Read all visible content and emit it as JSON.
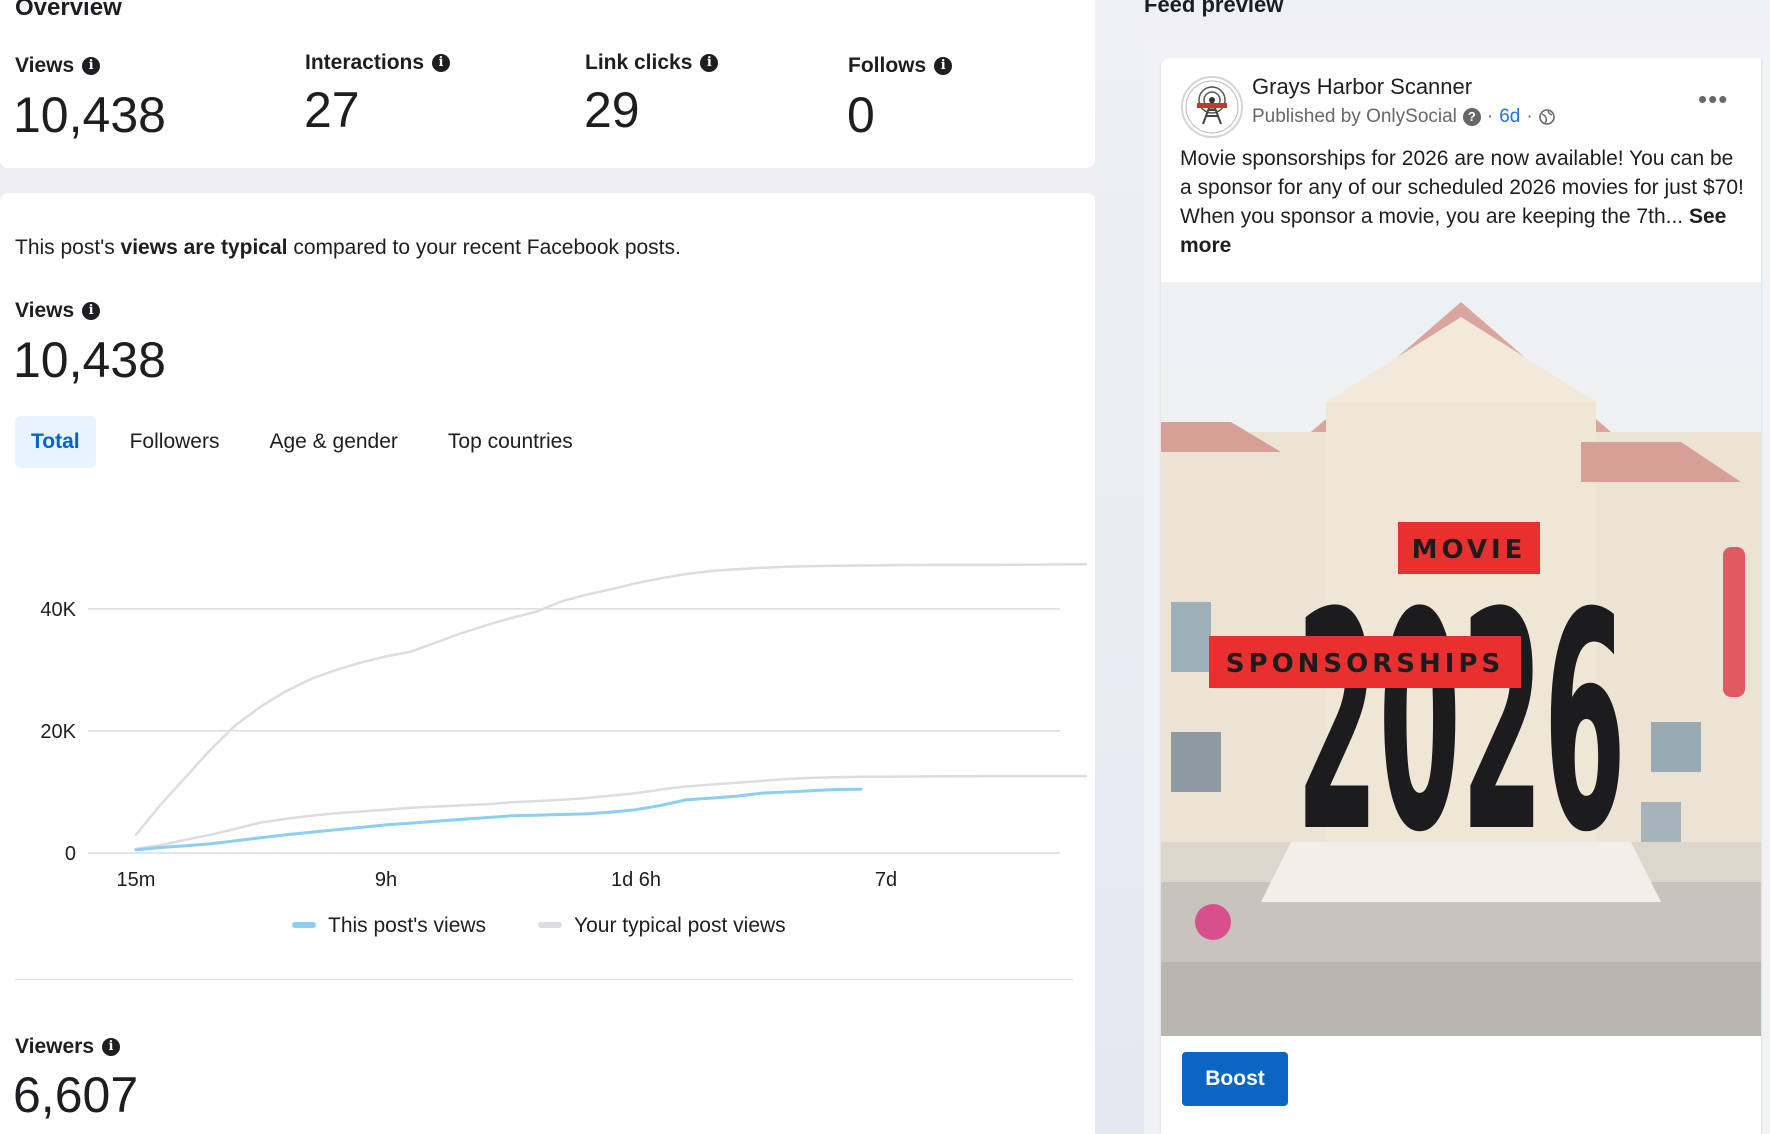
{
  "overview": {
    "title": "Overview",
    "metrics": [
      {
        "label": "Views",
        "value": "10,438"
      },
      {
        "label": "Interactions",
        "value": "27"
      },
      {
        "label": "Link clicks",
        "value": "29"
      },
      {
        "label": "Follows",
        "value": "0"
      }
    ]
  },
  "views_section": {
    "desc_prefix": "This post's ",
    "desc_bold": "views are typical",
    "desc_suffix": " compared to your recent Facebook posts.",
    "views_label": "Views",
    "views_value": "10,438",
    "tabs": [
      "Total",
      "Followers",
      "Age & gender",
      "Top countries"
    ],
    "active_tab": "Total",
    "viewers_label": "Viewers",
    "viewers_value": "6,607"
  },
  "chart_data": {
    "type": "line",
    "x_ticks": [
      "15m",
      "9h",
      "1d 6h",
      "7d"
    ],
    "y_ticks": [
      "0",
      "20K",
      "40K"
    ],
    "ylim": [
      0,
      48000
    ],
    "grid": true,
    "legend_position": "bottom",
    "x_index": [
      0,
      0.1,
      0.2,
      0.3,
      0.4,
      0.5,
      0.6,
      0.7,
      0.8,
      0.9,
      1.0,
      1.1,
      1.2,
      1.3,
      1.4,
      1.5,
      1.6,
      1.7,
      1.8,
      1.9,
      2.0,
      2.1,
      2.2,
      2.3,
      2.4,
      2.5,
      2.6,
      2.7,
      2.8,
      2.9,
      3.0,
      3.2,
      3.4,
      3.6,
      3.8
    ],
    "series": [
      {
        "name": "This post's views",
        "color": "#8ccff0",
        "values": [
          500,
          900,
          1200,
          1500,
          2000,
          2500,
          3000,
          3400,
          3800,
          4200,
          4600,
          4900,
          5200,
          5500,
          5800,
          6100,
          6200,
          6300,
          6400,
          6700,
          7100,
          7800,
          8700,
          9000,
          9300,
          9800,
          10000,
          10200,
          10400,
          10438
        ]
      },
      {
        "name": "Your typical post views",
        "color": "#dadde1",
        "values": [
          700,
          1300,
          2200,
          3000,
          4000,
          5000,
          5600,
          6100,
          6500,
          6800,
          7100,
          7400,
          7600,
          7800,
          8000,
          8300,
          8500,
          8700,
          9000,
          9400,
          9800,
          10400,
          10900,
          11200,
          11500,
          11800,
          12100,
          12300,
          12400,
          12500,
          12500,
          12550,
          12600,
          12600,
          12600
        ]
      },
      {
        "name": "",
        "color": "#dadde1",
        "values": [
          3000,
          8000,
          12500,
          17000,
          21000,
          24000,
          26500,
          28500,
          30000,
          31200,
          32200,
          33000,
          34500,
          36000,
          37300,
          38500,
          39500,
          41200,
          42300,
          43200,
          44200,
          45000,
          45700,
          46200,
          46500,
          46700,
          46900,
          47000,
          47050,
          47100,
          47150,
          47200,
          47200,
          47250,
          47300
        ]
      }
    ]
  },
  "feed_preview": {
    "title": "Feed preview",
    "page_name": "Grays Harbor Scanner",
    "published_by": "Published by OnlySocial",
    "time": "6d",
    "post_text": "Movie sponsorships for 2026 are now available! You can be a sponsor for any of our scheduled 2026 movies for just $70! When you sponsor a movie, you are keeping the 7th...",
    "see_more": "See more",
    "image_big_text": "2026",
    "image_tag_top": "MOVIE",
    "image_tag_bottom": "SPONSORSHIPS",
    "boost_label": "Boost",
    "more_icon": "more-horizontal-icon"
  }
}
